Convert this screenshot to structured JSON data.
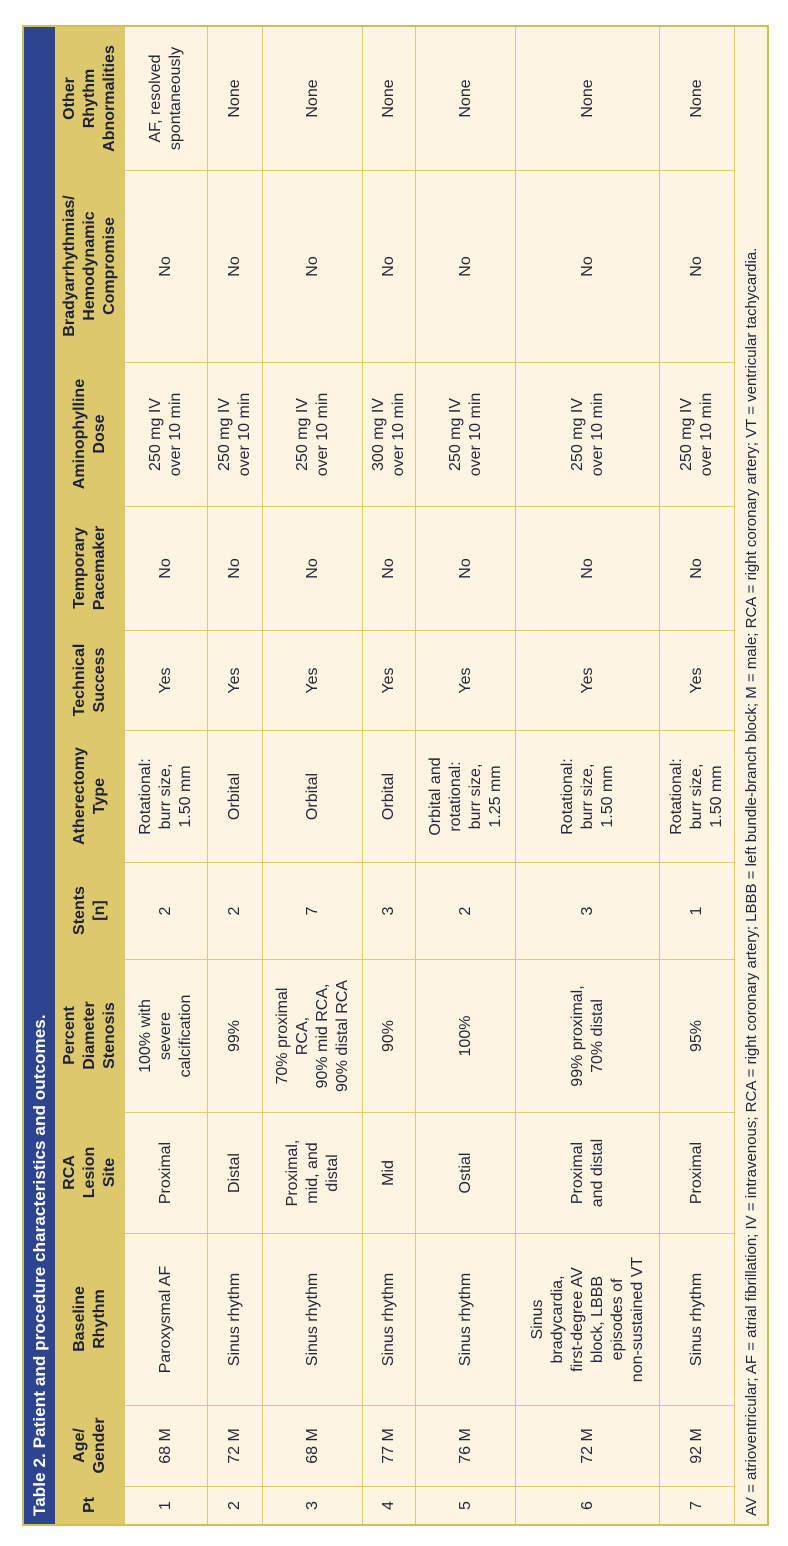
{
  "table": {
    "title": "Table 2. Patient and procedure characteristics and outcomes.",
    "columns": [
      {
        "id": "pt",
        "label": "Pt"
      },
      {
        "id": "age_gender",
        "label": "Age/\nGender"
      },
      {
        "id": "baseline_rhythm",
        "label": "Baseline\nRhythm"
      },
      {
        "id": "rca_lesion_site",
        "label": "RCA\nLesion\nSite"
      },
      {
        "id": "percent_diameter_stenosis",
        "label": "Percent\nDiameter\nStenosis"
      },
      {
        "id": "stents_n",
        "label": "Stents\n[n]"
      },
      {
        "id": "atherectomy_type",
        "label": "Atherectomy\nType"
      },
      {
        "id": "technical_success",
        "label": "Technical\nSuccess"
      },
      {
        "id": "temporary_pacemaker",
        "label": "Temporary\nPacemaker"
      },
      {
        "id": "aminophylline_dose",
        "label": "Aminophylline\nDose"
      },
      {
        "id": "bradyarrhythmias_hemodynamic_compromise",
        "label": "Bradyarrhythmias/\nHemodynamic\nCompromise"
      },
      {
        "id": "other_rhythm_abnormalities",
        "label": "Other\nRhythm\nAbnormalities"
      }
    ],
    "rows": [
      {
        "pt": "1",
        "age_gender": "68 M",
        "baseline_rhythm": "Paroxysmal AF",
        "rca_lesion_site": "Proximal",
        "percent_diameter_stenosis": "100% with\nsevere\ncalcification",
        "stents_n": "2",
        "atherectomy_type": "Rotational:\nburr size,\n1.50 mm",
        "technical_success": "Yes",
        "temporary_pacemaker": "No",
        "aminophylline_dose": "250 mg IV\nover 10 min",
        "bradyarrhythmias_hemodynamic_compromise": "No",
        "other_rhythm_abnormalities": "AF, resolved\nspontaneously"
      },
      {
        "pt": "2",
        "age_gender": "72 M",
        "baseline_rhythm": "Sinus rhythm",
        "rca_lesion_site": "Distal",
        "percent_diameter_stenosis": "99%",
        "stents_n": "2",
        "atherectomy_type": "Orbital",
        "technical_success": "Yes",
        "temporary_pacemaker": "No",
        "aminophylline_dose": "250 mg IV\nover 10 min",
        "bradyarrhythmias_hemodynamic_compromise": "No",
        "other_rhythm_abnormalities": "None"
      },
      {
        "pt": "3",
        "age_gender": "68 M",
        "baseline_rhythm": "Sinus rhythm",
        "rca_lesion_site": "Proximal,\nmid, and\ndistal",
        "percent_diameter_stenosis": "70% proximal\nRCA,\n90% mid RCA,\n90% distal RCA",
        "stents_n": "7",
        "atherectomy_type": "Orbital",
        "technical_success": "Yes",
        "temporary_pacemaker": "No",
        "aminophylline_dose": "250 mg IV\nover 10 min",
        "bradyarrhythmias_hemodynamic_compromise": "No",
        "other_rhythm_abnormalities": "None"
      },
      {
        "pt": "4",
        "age_gender": "77 M",
        "baseline_rhythm": "Sinus rhythm",
        "rca_lesion_site": "Mid",
        "percent_diameter_stenosis": "90%",
        "stents_n": "3",
        "atherectomy_type": "Orbital",
        "technical_success": "Yes",
        "temporary_pacemaker": "No",
        "aminophylline_dose": "300 mg IV\nover 10 min",
        "bradyarrhythmias_hemodynamic_compromise": "No",
        "other_rhythm_abnormalities": "None"
      },
      {
        "pt": "5",
        "age_gender": "76 M",
        "baseline_rhythm": "Sinus rhythm",
        "rca_lesion_site": "Ostial",
        "percent_diameter_stenosis": "100%",
        "stents_n": "2",
        "atherectomy_type": "Orbital and\nrotational:\nburr size,\n1.25 mm",
        "technical_success": "Yes",
        "temporary_pacemaker": "No",
        "aminophylline_dose": "250 mg IV\nover 10 min",
        "bradyarrhythmias_hemodynamic_compromise": "No",
        "other_rhythm_abnormalities": "None"
      },
      {
        "pt": "6",
        "age_gender": "72 M",
        "baseline_rhythm": "Sinus\nbradycardia,\nfirst-degree AV\nblock, LBBB\nepisodes of\nnon-sustained VT",
        "rca_lesion_site": "Proximal\nand distal",
        "percent_diameter_stenosis": "99% proximal,\n70% distal",
        "stents_n": "3",
        "atherectomy_type": "Rotational:\nburr size,\n1.50 mm",
        "technical_success": "Yes",
        "temporary_pacemaker": "No",
        "aminophylline_dose": "250 mg IV\nover 10 min",
        "bradyarrhythmias_hemodynamic_compromise": "No",
        "other_rhythm_abnormalities": "None"
      },
      {
        "pt": "7",
        "age_gender": "92 M",
        "baseline_rhythm": "Sinus rhythm",
        "rca_lesion_site": "Proximal",
        "percent_diameter_stenosis": "95%",
        "stents_n": "1",
        "atherectomy_type": "Rotational:\nburr size,\n1.50 mm",
        "technical_success": "Yes",
        "temporary_pacemaker": "No",
        "aminophylline_dose": "250 mg IV\nover 10 min",
        "bradyarrhythmias_hemodynamic_compromise": "No",
        "other_rhythm_abnormalities": "None"
      }
    ],
    "footnote": "AV = atrioventricular; AF = atrial fibrillation; IV = intravenous; RCA = right coronary artery; LBBB = left bundle-branch block; M = male; RCA = right coronary artery; VT = ventricular tachycardia."
  },
  "colors": {
    "title_bar": "#2d4591",
    "header_bg": "#ddc96c",
    "cell_bg": "#fdf5e2",
    "grid_line": "#e0ca6e",
    "outer_border": "#d3bd5b",
    "title_text": "#ffffff",
    "body_text": "#25283a"
  },
  "orientation": {
    "rotation_degrees": -90
  }
}
